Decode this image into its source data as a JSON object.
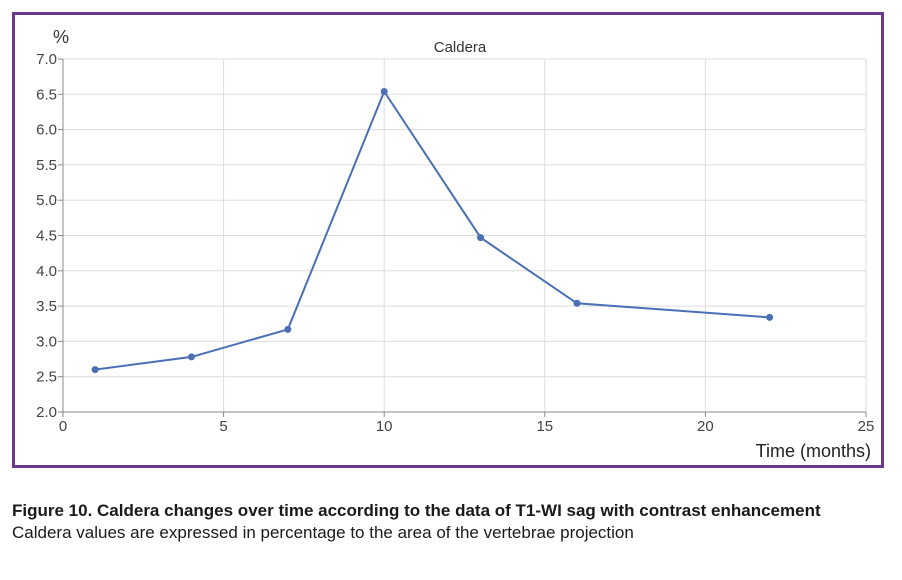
{
  "chart_data": {
    "type": "line",
    "title": "Caldera",
    "ylabel": "%",
    "xlabel": "Time (months)",
    "xlim": [
      0,
      25
    ],
    "ylim": [
      2.0,
      7.0
    ],
    "x_ticks": [
      0,
      5,
      10,
      15,
      20,
      25
    ],
    "y_ticks": [
      2.0,
      2.5,
      3.0,
      3.5,
      4.0,
      4.5,
      5.0,
      5.5,
      6.0,
      6.5,
      7.0
    ],
    "grid": true,
    "line_color": "#4a6fb5",
    "series": [
      {
        "x": [
          1,
          4,
          7,
          10,
          13,
          16,
          22
        ],
        "y": [
          2.6,
          2.78,
          3.17,
          6.54,
          4.47,
          3.54,
          3.34
        ]
      }
    ]
  },
  "caption": {
    "title": "Figure 10. Caldera changes over time according to the data of T1-WI sag with contrast enhancement",
    "subtitle": "Caldera values are expressed in percentage to the area of the vertebrae projection"
  },
  "colors": {
    "frame_border": "#6a3a8c",
    "grid": "#dddddd",
    "axis": "#888888"
  }
}
